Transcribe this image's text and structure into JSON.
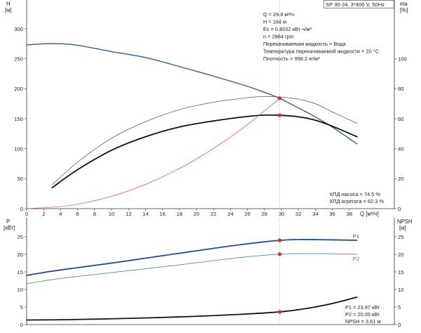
{
  "info": {
    "lines": [
      "Q = 29.8 м³/ч",
      "H = 184 м",
      "Es = 0.8032 кВт·ч/м³",
      "n = 2884 rpm",
      "Перекачиваемая жидкость = Вода",
      "Температура перекачиваемой жидкости = 20 °C",
      "Плотность = 998.2 кг/м³"
    ]
  },
  "efficiency": {
    "pump": "КПД насоса = 74.5 %",
    "unit": "КПД агрегата = 62.3 %"
  },
  "readout": {
    "p1": "P1 = 23.97 кВт",
    "p2": "P2 = 20.05 кВт",
    "npsh": "NPSH = 3.61 м"
  },
  "chart_data": [
    {
      "type": "line",
      "title": "SP 30-24, 3*400 V, 50Hz",
      "xlabel": "Q [м³/ч]",
      "ylabel": {
        "symbol": "H",
        "unit": "[м]"
      },
      "y2label": {
        "symbol": "eta",
        "unit": "[%]"
      },
      "xlim": [
        0,
        43.3
      ],
      "ylim": [
        0,
        348
      ],
      "y2lim": [
        0,
        139.2
      ],
      "x_ticks": [
        0,
        2,
        4,
        6,
        8,
        10,
        12,
        14,
        16,
        18,
        20,
        22,
        24,
        26,
        28,
        30,
        32,
        34,
        36,
        38
      ],
      "y_ticks": [
        0,
        50,
        100,
        150,
        200,
        250,
        300
      ],
      "y2_ticks": [
        0,
        20,
        40,
        60,
        80,
        100
      ],
      "grid": false,
      "reference_x": 29.8,
      "series": [
        {
          "axis": "left",
          "color": "#2b5d9b",
          "weight": "medium",
          "x": [
            0,
            2,
            4,
            6,
            10,
            14,
            18,
            20,
            22,
            26,
            28,
            29.8,
            32,
            34,
            36,
            38.9
          ],
          "y": [
            273,
            275,
            275,
            272.5,
            262,
            252,
            237,
            229,
            221,
            204,
            194,
            184,
            168,
            153,
            136,
            108
          ]
        },
        {
          "axis": "right",
          "color": "#555555",
          "weight": "light",
          "x": [
            3,
            6,
            10,
            14,
            18,
            22,
            26,
            28,
            29.8,
            32,
            34,
            36,
            38.9
          ],
          "y": [
            16,
            31,
            47,
            58,
            66,
            71,
            74,
            74.8,
            74.5,
            73,
            70,
            64.5,
            57
          ]
        },
        {
          "axis": "right",
          "color": "#111111",
          "weight": "heavy",
          "x": [
            3,
            6,
            10,
            14,
            18,
            22,
            26,
            28,
            29.8,
            32,
            34,
            36,
            38.9
          ],
          "y": [
            14,
            26,
            39,
            48,
            54.5,
            58.5,
            61.5,
            62.4,
            62.3,
            61.3,
            59,
            55,
            48
          ]
        },
        {
          "axis": "left",
          "color": "#ff4a3a",
          "weight": "light",
          "x": [
            0,
            5,
            10,
            15,
            20,
            25,
            29.8
          ],
          "y": [
            0,
            5.2,
            20.7,
            46.6,
            82.9,
            129.5,
            184
          ]
        }
      ],
      "markers": [
        {
          "x": 29.8,
          "y": 184,
          "axis": "left",
          "color": "#e8251a"
        },
        {
          "x": 29.8,
          "y": 62.3,
          "axis": "right",
          "color": "#e8251a"
        }
      ]
    },
    {
      "type": "line",
      "ylabel": {
        "symbol": "P",
        "unit": "[кВт]"
      },
      "y2label": {
        "symbol": "NPSH",
        "unit": "[м]"
      },
      "xlim": [
        0,
        43.3
      ],
      "ylim": [
        0,
        30.4
      ],
      "y2lim": [
        0,
        30.4
      ],
      "x_ticks": [],
      "y_ticks": [
        0,
        5,
        10,
        15,
        20,
        25
      ],
      "y2_ticks": [
        0,
        5,
        10,
        15,
        20,
        25
      ],
      "grid": false,
      "reference_x": 29.8,
      "series": [
        {
          "name": "P1",
          "axis": "left",
          "color": "#1f4e8c",
          "weight": "heavy",
          "label_position": "above",
          "x": [
            0,
            3,
            6,
            10,
            14,
            18,
            22,
            26,
            29.8,
            32,
            35,
            38.9
          ],
          "y": [
            14.0,
            15.2,
            16.2,
            17.5,
            18.9,
            20.3,
            21.7,
            23.0,
            23.97,
            24.2,
            24.15,
            24.0
          ]
        },
        {
          "name": "P2",
          "axis": "left",
          "color": "#3a6eb5",
          "weight": "light",
          "label_position": "below",
          "x": [
            0,
            3,
            6,
            10,
            14,
            18,
            22,
            26,
            29.8,
            32,
            35,
            38.9
          ],
          "y": [
            11.6,
            12.8,
            13.7,
            14.8,
            15.9,
            17.0,
            18.2,
            19.3,
            20.05,
            20.2,
            20.2,
            20.0
          ]
        },
        {
          "axis": "right",
          "color": "#111111",
          "weight": "heavy",
          "x": [
            0,
            5,
            10,
            15,
            20,
            25,
            29.8,
            33,
            36,
            38.9
          ],
          "y": [
            1.3,
            1.4,
            1.65,
            1.95,
            2.35,
            2.9,
            3.61,
            4.6,
            6.0,
            7.8
          ]
        }
      ],
      "markers": [
        {
          "x": 29.8,
          "y": 23.97,
          "axis": "left",
          "color": "#e8251a"
        },
        {
          "x": 29.8,
          "y": 20.05,
          "axis": "left",
          "color": "#e8251a"
        },
        {
          "x": 29.8,
          "y": 3.61,
          "axis": "right",
          "color": "#e8251a"
        }
      ]
    }
  ]
}
